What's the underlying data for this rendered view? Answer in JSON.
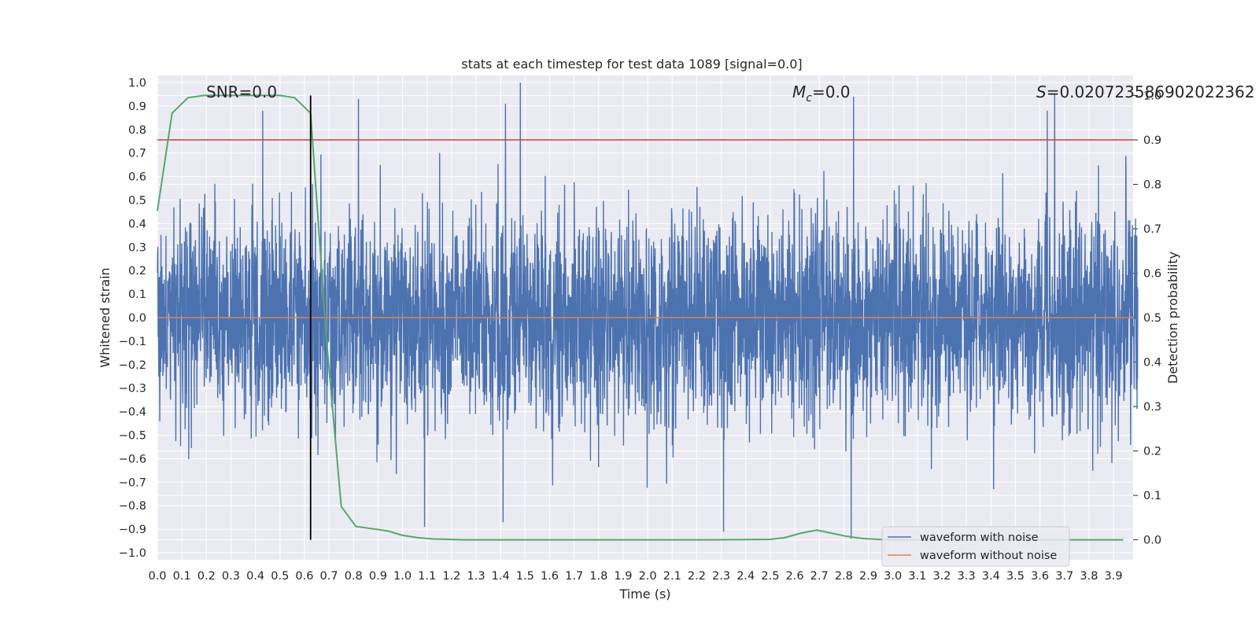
{
  "chart_data": {
    "type": "line",
    "title": "stats at each timestep for test data 1089 [signal=0.0]",
    "xlabel": "Time (s)",
    "ylabel": "Whitened strain",
    "y2label": "Detection probability",
    "xlim": [
      0.0,
      3.98
    ],
    "ylim": [
      -1.03,
      1.03
    ],
    "y2lim": [
      -0.045,
      1.045
    ],
    "x_ticks": [
      0.0,
      0.1,
      0.2,
      0.3,
      0.4,
      0.5,
      0.6,
      0.7,
      0.8,
      0.9,
      1.0,
      1.1,
      1.2,
      1.3,
      1.4,
      1.5,
      1.6,
      1.7,
      1.8,
      1.9,
      2.0,
      2.1,
      2.2,
      2.3,
      2.4,
      2.5,
      2.6,
      2.7,
      2.8,
      2.9,
      3.0,
      3.1,
      3.2,
      3.3,
      3.4,
      3.5,
      3.6,
      3.7,
      3.8,
      3.9
    ],
    "x_tick_labels": [
      "0.0",
      "0.1",
      "0.2",
      "0.3",
      "0.4",
      "0.5",
      "0.6",
      "0.7",
      "0.8",
      "0.9",
      "1.0",
      "1.1",
      "1.2",
      "1.3",
      "1.4",
      "1.5",
      "1.6",
      "1.7",
      "1.8",
      "1.9",
      "2.0",
      "2.1",
      "2.2",
      "2.3",
      "2.4",
      "2.5",
      "2.6",
      "2.7",
      "2.8",
      "2.9",
      "3.0",
      "3.1",
      "3.2",
      "3.3",
      "3.4",
      "3.5",
      "3.6",
      "3.7",
      "3.8",
      "3.9"
    ],
    "y_ticks": [
      -1.0,
      -0.9,
      -0.8,
      -0.7,
      -0.6,
      -0.5,
      -0.4,
      -0.3,
      -0.2,
      -0.1,
      0.0,
      0.1,
      0.2,
      0.3,
      0.4,
      0.5,
      0.6,
      0.7,
      0.8,
      0.9,
      1.0
    ],
    "y_tick_labels": [
      "−1.0",
      "−0.9",
      "−0.8",
      "−0.7",
      "−0.6",
      "−0.5",
      "−0.4",
      "−0.3",
      "−0.2",
      "−0.1",
      "0.0",
      "0.1",
      "0.2",
      "0.3",
      "0.4",
      "0.5",
      "0.6",
      "0.7",
      "0.8",
      "0.9",
      "1.0"
    ],
    "y2_ticks": [
      0.0,
      0.1,
      0.2,
      0.3,
      0.4,
      0.5,
      0.6,
      0.7,
      0.8,
      0.9,
      1.0
    ],
    "y2_tick_labels": [
      "0.0",
      "0.1",
      "0.2",
      "0.3",
      "0.4",
      "0.5",
      "0.6",
      "0.7",
      "0.8",
      "0.9",
      "1.0"
    ],
    "grid": true,
    "legend": {
      "position": "lower-right",
      "entries": [
        {
          "label": "waveform with noise",
          "color": "#4c72b0"
        },
        {
          "label": "waveform without noise",
          "color": "#dd8452"
        }
      ]
    },
    "annotations": {
      "snr": "SNR=0.0",
      "mc_symbol": "M",
      "mc_sub": "c",
      "mc_value": "=0.0",
      "s_symbol": "S",
      "s_value": "=0.020723586902022362"
    },
    "noise_series": {
      "name": "waveform with noise",
      "color": "#4c72b0",
      "axis": "left",
      "n_samples": 4096,
      "x_range": [
        0.0,
        3.999
      ],
      "std_estimate": 0.22,
      "max": 1.0,
      "min": -0.94,
      "notable_peaks": [
        {
          "x": 0.43,
          "y": 0.88
        },
        {
          "x": 0.82,
          "y": 0.93
        },
        {
          "x": 1.42,
          "y": 0.91
        },
        {
          "x": 1.48,
          "y": 1.0
        },
        {
          "x": 2.84,
          "y": 0.94
        },
        {
          "x": 3.63,
          "y": 0.88
        },
        {
          "x": 3.66,
          "y": 0.95
        },
        {
          "x": 2.31,
          "y": -0.91
        },
        {
          "x": 1.41,
          "y": -0.87
        },
        {
          "x": 1.09,
          "y": -0.89
        },
        {
          "x": 2.83,
          "y": -0.94
        }
      ]
    },
    "clean_series": {
      "name": "waveform without noise",
      "color": "#dd8452",
      "axis": "left",
      "value": 0.0
    },
    "probability_series": {
      "name": "detection probability",
      "color": "#55a868",
      "axis": "right",
      "x": [
        0.0,
        0.06,
        0.125,
        0.19,
        0.25,
        0.31,
        0.375,
        0.44,
        0.5,
        0.56,
        0.625,
        0.69,
        0.75,
        0.81,
        0.875,
        0.94,
        1.0,
        1.06,
        1.125,
        1.19,
        1.25,
        1.5,
        1.75,
        2.0,
        2.25,
        2.5,
        2.56,
        2.625,
        2.69,
        2.75,
        2.81,
        2.875,
        2.94,
        3.0,
        3.25,
        3.5,
        3.75,
        3.94
      ],
      "values": [
        0.74,
        0.96,
        0.995,
        1.0,
        1.0,
        1.0,
        1.0,
        1.0,
        1.0,
        0.995,
        0.96,
        0.45,
        0.075,
        0.03,
        0.025,
        0.02,
        0.01,
        0.005,
        0.002,
        0.001,
        0.0,
        0.0,
        0.0,
        0.0,
        0.0,
        0.001,
        0.005,
        0.015,
        0.022,
        0.015,
        0.008,
        0.003,
        0.001,
        0.0,
        0.0,
        0.0,
        0.0,
        0.0
      ]
    },
    "threshold_line": {
      "color": "#c44e52",
      "axis": "right",
      "value": 0.9
    },
    "marker_line": {
      "color": "#000000",
      "x": 0.625,
      "axis": "right",
      "range": [
        0.0,
        1.0
      ]
    }
  }
}
